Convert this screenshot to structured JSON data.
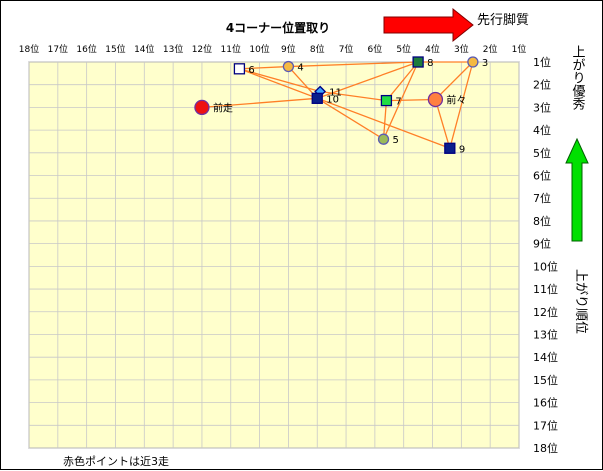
{
  "chart_data": {
    "type": "scatter",
    "title": "4コーナー位置取り",
    "x_axis_note": "先行脚質",
    "y_axis_note_top": "上がり優秀",
    "y_axis_note_side": "上がり順位",
    "footnote": "赤色ポイントは近3走",
    "x_ticks": [
      "18位",
      "17位",
      "16位",
      "15位",
      "14位",
      "13位",
      "12位",
      "11位",
      "10位",
      "9位",
      "8位",
      "7位",
      "6位",
      "5位",
      "4位",
      "3位",
      "2位",
      "1位"
    ],
    "y_ticks": [
      "1位",
      "2位",
      "3位",
      "4位",
      "5位",
      "6位",
      "7位",
      "8位",
      "9位",
      "10位",
      "11位",
      "12位",
      "13位",
      "14位",
      "15位",
      "16位",
      "17位",
      "18位"
    ],
    "xlim": [
      18,
      1
    ],
    "ylim": [
      1,
      18
    ],
    "grid": true,
    "colors": {
      "plot_bg": "#FFFFCC",
      "grid": "#C8C8C8",
      "line": "#FF7F27",
      "arrow_right": "#FF0000",
      "arrow_up": "#00E000"
    },
    "lines": [
      [
        "3",
        "8"
      ],
      [
        "3",
        "9"
      ],
      [
        "3",
        "前々"
      ],
      [
        "8",
        "4"
      ],
      [
        "8",
        "7"
      ],
      [
        "8",
        "5"
      ],
      [
        "8",
        "10"
      ],
      [
        "4",
        "6"
      ],
      [
        "4",
        "10"
      ],
      [
        "6",
        "9"
      ],
      [
        "6",
        "11"
      ],
      [
        "11",
        "7"
      ],
      [
        "11",
        "10"
      ],
      [
        "10",
        "前走"
      ],
      [
        "10",
        "5"
      ],
      [
        "7",
        "前々"
      ],
      [
        "7",
        "5"
      ],
      [
        "前々",
        "9"
      ]
    ],
    "points": [
      {
        "label": "3",
        "x": 2.6,
        "y": 1.0,
        "shape": "circle",
        "fill": "#F4B942",
        "stroke": "#5A5AB4"
      },
      {
        "label": "8",
        "x": 4.5,
        "y": 1.0,
        "shape": "square",
        "fill": "#1E7B3A",
        "stroke": "#000080"
      },
      {
        "label": "4",
        "x": 9.0,
        "y": 1.2,
        "shape": "circle",
        "fill": "#F4B942",
        "stroke": "#5A5AB4"
      },
      {
        "label": "6",
        "x": 10.7,
        "y": 1.3,
        "shape": "square",
        "fill": "#FFFFFF",
        "stroke": "#000080"
      },
      {
        "label": "11",
        "x": 7.9,
        "y": 2.3,
        "shape": "diamond",
        "fill": "#3BA4FF",
        "stroke": "#000080"
      },
      {
        "label": "10",
        "x": 8.0,
        "y": 2.6,
        "shape": "square",
        "fill": "#0A1E8C",
        "stroke": "#000080"
      },
      {
        "label": "7",
        "x": 5.6,
        "y": 2.7,
        "shape": "square",
        "fill": "#22DD44",
        "stroke": "#000080"
      },
      {
        "label": "前々",
        "x": 3.9,
        "y": 2.65,
        "shape": "circle-large",
        "fill": "#FF8040",
        "stroke": "#7030A0"
      },
      {
        "label": "前走",
        "x": 12.0,
        "y": 3.0,
        "shape": "circle-large",
        "fill": "#EE1111",
        "stroke": "#7030A0"
      },
      {
        "label": "5",
        "x": 5.7,
        "y": 4.4,
        "shape": "circle",
        "fill": "#9BBB59",
        "stroke": "#5A5AB4"
      },
      {
        "label": "9",
        "x": 3.4,
        "y": 4.8,
        "shape": "square",
        "fill": "#0A1E8C",
        "stroke": "#000080"
      }
    ]
  }
}
